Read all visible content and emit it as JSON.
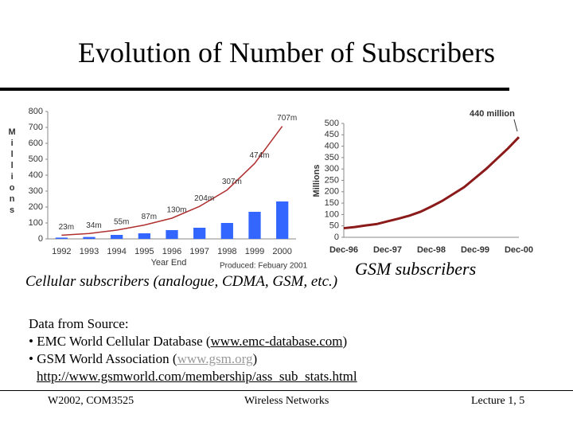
{
  "slide": {
    "title": "Evolution of Number of Subscribers",
    "caption_left": "Cellular subscribers (analogue, CDMA, GSM, etc.)",
    "caption_right": "GSM subscribers",
    "source_heading": "Data from Source:",
    "source_1_text": "EMC World Cellular Database (",
    "source_1_link": "www.emc-database.com",
    "source_1_end": ")",
    "source_2_text": "GSM World Association (",
    "source_2_link": "www.gsm.org",
    "source_2_end": ")",
    "source_3_link": "http://www.gsmworld.com/membership/ass_sub_stats.html",
    "footer_left": "W2002, COM3525",
    "footer_center": "Wireless Networks",
    "footer_right": "Lecture 1, 5"
  },
  "chart_data": [
    {
      "type": "bar",
      "y_label": "Millions",
      "x_label": "Year End",
      "annotation": "Produced: Febuary 2001",
      "categories": [
        "1992",
        "1993",
        "1994",
        "1995",
        "1996",
        "1997",
        "1998",
        "1999",
        "2000"
      ],
      "series": [
        {
          "type": "bar",
          "color": "#3366ff",
          "values": [
            8,
            12,
            25,
            35,
            55,
            70,
            100,
            170,
            235
          ]
        },
        {
          "type": "line",
          "color": "#b03030",
          "values": [
            23,
            34,
            55,
            87,
            130,
            204,
            307,
            474,
            707
          ],
          "value_labels": [
            "23m",
            "34m",
            "55m",
            "87m",
            "130m",
            "204m",
            "307m",
            "474m",
            "707m"
          ]
        }
      ],
      "ylim": [
        0,
        800
      ],
      "yticks": [
        0,
        100,
        200,
        300,
        400,
        500,
        600,
        700,
        800
      ]
    },
    {
      "type": "line",
      "y_label": "Millions",
      "annotation": "440 million",
      "x": [
        "Dec-96",
        null,
        null,
        null,
        "Dec-97",
        null,
        null,
        null,
        "Dec-98",
        null,
        null,
        null,
        "Dec-99",
        null,
        null,
        null,
        "Dec-00"
      ],
      "series": [
        {
          "color": "#8b1a1a",
          "values": [
            40,
            45,
            52,
            58,
            70,
            82,
            95,
            112,
            135,
            160,
            190,
            220,
            260,
            300,
            345,
            390,
            440
          ]
        }
      ],
      "ylim": [
        0,
        500
      ],
      "yticks": [
        0,
        50,
        100,
        150,
        200,
        250,
        300,
        350,
        400,
        450,
        500
      ]
    }
  ]
}
